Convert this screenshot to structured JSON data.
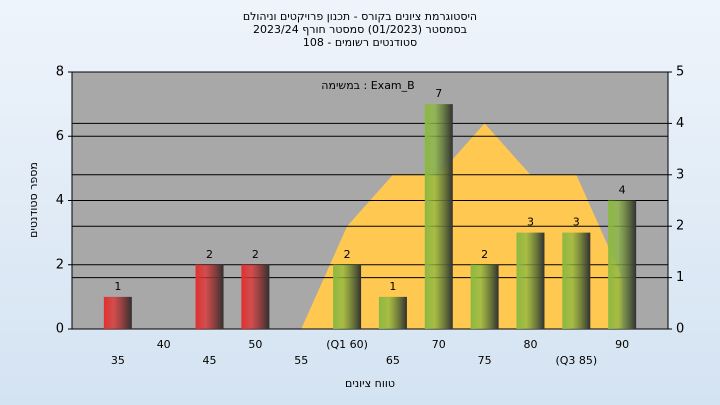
{
  "chart_data": {
    "type": "bar",
    "title": "היסטוגרמת ציונים בקורס - תכנון פרויקטים וניהולם",
    "subtitle": "בסמסטר  (01/2023)  סמסטר חורף 2023/24",
    "subtitle2": "סטודנטים רשומים - 108",
    "annotation": "במשימה : Exam_B",
    "x_label": "טווח ציונים",
    "y_label": "מספר סטודנטים",
    "categories": [
      "35",
      "40",
      "45",
      "50",
      "55",
      "(Q1 60)",
      "65",
      "70",
      "75",
      "80",
      "(Q3 85)",
      "90"
    ],
    "values": [
      1,
      0,
      2,
      2,
      0,
      2,
      1,
      7,
      2,
      3,
      3,
      4
    ],
    "colors": [
      "#e03030",
      "#e03030",
      "#e03030",
      "#e03030",
      "#e03030",
      "#8cb840",
      "#8cb840",
      "#8cb840",
      "#8cb840",
      "#8cb840",
      "#8cb840",
      "#8cb840"
    ],
    "area": {
      "values": [
        null,
        null,
        null,
        null,
        0,
        2,
        3,
        3,
        4,
        3,
        3,
        1
      ],
      "color": "#ffc850",
      "axis": "y2"
    },
    "ylim": [
      0,
      8
    ],
    "yticks": [
      0,
      2,
      4,
      6,
      8
    ],
    "y2lim": [
      0,
      5
    ],
    "y2ticks": [
      0,
      1,
      2,
      3,
      4,
      5
    ],
    "grid": true
  }
}
